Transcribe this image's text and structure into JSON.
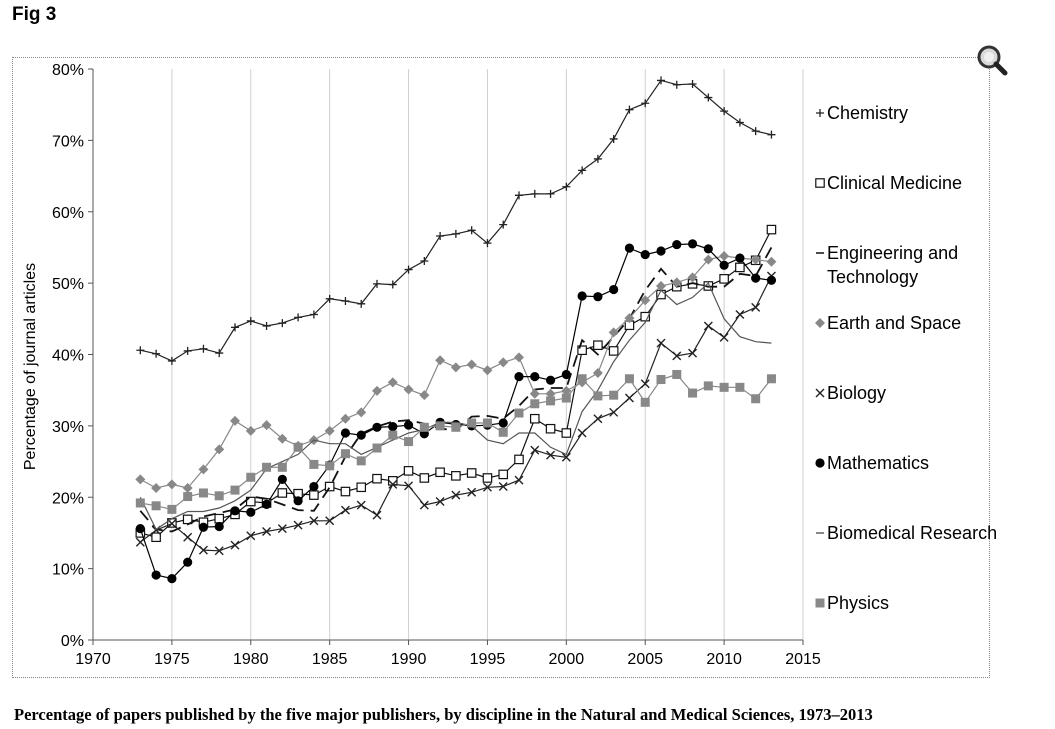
{
  "fig_label": "Fig 3",
  "caption": "Percentage of papers published by the five major publishers, by discipline in the Natural and Medical Sciences, 1973–2013",
  "zoom_icon": "magnifier-icon",
  "chart_data": {
    "type": "line",
    "title": "",
    "xlabel": "",
    "ylabel": "Percentage of journal articles",
    "xlim": [
      1970,
      2015
    ],
    "ylim": [
      0,
      80
    ],
    "x_ticks": [
      1970,
      1975,
      1980,
      1985,
      1990,
      1995,
      2000,
      2005,
      2010,
      2015
    ],
    "x_tick_labels": [
      "1970",
      "1975",
      "1980",
      "1985",
      "1990",
      "1995",
      "2000",
      "2005",
      "2010",
      "2015"
    ],
    "y_ticks": [
      0,
      10,
      20,
      30,
      40,
      50,
      60,
      70,
      80
    ],
    "y_tick_labels": [
      "0%",
      "10%",
      "20%",
      "30%",
      "40%",
      "50%",
      "60%",
      "70%",
      "80%"
    ],
    "grid": "vertical",
    "legend_position": "right",
    "x": [
      1973,
      1974,
      1975,
      1976,
      1977,
      1978,
      1979,
      1980,
      1981,
      1982,
      1983,
      1984,
      1985,
      1986,
      1987,
      1988,
      1989,
      1990,
      1991,
      1992,
      1993,
      1994,
      1995,
      1996,
      1997,
      1998,
      1999,
      2000,
      2001,
      2002,
      2003,
      2004,
      2005,
      2006,
      2007,
      2008,
      2009,
      2010,
      2011,
      2012,
      2013
    ],
    "series": [
      {
        "name": "Chemistry",
        "color": "#222222",
        "marker": "plus",
        "dash": "none",
        "values": [
          40.6,
          40.1,
          39.1,
          40.5,
          40.8,
          40.2,
          43.8,
          44.7,
          44.0,
          44.4,
          45.2,
          45.6,
          47.8,
          47.5,
          47.1,
          49.9,
          49.8,
          51.9,
          53.1,
          56.6,
          56.9,
          57.4,
          55.6,
          58.2,
          62.3,
          62.5,
          62.5,
          63.5,
          65.8,
          67.4,
          70.2,
          74.3,
          75.2,
          78.4,
          77.8,
          77.9,
          76.0,
          74.1,
          72.5,
          71.3,
          70.8
        ]
      },
      {
        "name": "Clinical Medicine",
        "color": "#111111",
        "marker": "square-open",
        "dash": "none",
        "values": [
          15.0,
          14.4,
          16.4,
          16.9,
          16.5,
          17.0,
          17.6,
          19.4,
          19.2,
          20.6,
          20.5,
          20.3,
          21.5,
          20.8,
          21.4,
          22.6,
          22.3,
          23.7,
          22.7,
          23.5,
          23.0,
          23.4,
          22.7,
          23.2,
          25.3,
          31.0,
          29.6,
          29.0,
          40.6,
          41.3,
          40.5,
          44.1,
          45.3,
          48.4,
          49.5,
          49.9,
          49.6,
          50.6,
          52.2,
          53.2,
          57.5
        ]
      },
      {
        "name": "Engineering and Technology",
        "color": "#111111",
        "marker": "none",
        "dash": "12,7",
        "values": [
          18.1,
          15.5,
          15.2,
          16.2,
          17.3,
          17.8,
          18.3,
          20.1,
          19.8,
          19.0,
          18.2,
          18.1,
          21.4,
          25.7,
          28.9,
          29.9,
          30.6,
          30.8,
          30.3,
          29.6,
          29.4,
          31.3,
          31.4,
          31.0,
          32.8,
          35.1,
          35.3,
          35.3,
          42.0,
          40.0,
          42.5,
          45.0,
          49.0,
          52.0,
          49.5,
          50.0,
          49.5,
          49.5,
          51.3,
          51.0,
          55.0
        ]
      },
      {
        "name": "Earth and Space",
        "color": "#888888",
        "marker": "diamond",
        "dash": "none",
        "values": [
          22.5,
          21.3,
          21.8,
          21.3,
          23.9,
          26.7,
          30.7,
          29.3,
          30.1,
          28.2,
          27.2,
          28.0,
          29.3,
          31.0,
          31.9,
          34.9,
          36.1,
          35.1,
          34.3,
          39.2,
          38.2,
          38.6,
          37.8,
          38.9,
          39.6,
          34.5,
          34.5,
          34.9,
          36.1,
          37.4,
          43.1,
          45.1,
          47.6,
          49.6,
          50.1,
          50.8,
          53.3,
          53.8,
          53.5,
          53.3,
          53.0
        ]
      },
      {
        "name": "Biology",
        "color": "#222222",
        "marker": "x",
        "dash": "none",
        "values": [
          13.7,
          15.4,
          16.3,
          14.4,
          12.6,
          12.5,
          13.3,
          14.6,
          15.2,
          15.6,
          16.1,
          16.7,
          16.7,
          18.2,
          18.9,
          17.5,
          21.8,
          21.6,
          18.9,
          19.4,
          20.3,
          20.7,
          21.4,
          21.5,
          22.4,
          26.6,
          25.9,
          25.6,
          29.0,
          31.0,
          31.9,
          33.9,
          35.9,
          41.6,
          39.8,
          40.2,
          44.0,
          42.4,
          45.6,
          46.6,
          51.0
        ]
      },
      {
        "name": "Mathematics",
        "color": "#000000",
        "marker": "circle",
        "dash": "none",
        "values": [
          15.6,
          9.1,
          8.6,
          10.9,
          15.8,
          15.9,
          18.1,
          17.9,
          19.0,
          22.5,
          19.5,
          21.5,
          24.5,
          29.0,
          28.7,
          29.8,
          29.9,
          30.1,
          28.9,
          30.5,
          30.2,
          30.0,
          30.1,
          30.4,
          36.9,
          36.9,
          36.4,
          37.2,
          48.2,
          48.1,
          49.1,
          54.9,
          54.0,
          54.5,
          55.4,
          55.5,
          54.8,
          52.5,
          53.5,
          50.7,
          50.4
        ]
      },
      {
        "name": "Biomedical Research",
        "color": "#555555",
        "marker": "dash",
        "dash": "none",
        "values": [
          20.0,
          15.5,
          17.0,
          18.0,
          18.0,
          18.5,
          19.5,
          21.0,
          24.0,
          25.0,
          26.0,
          28.0,
          27.5,
          27.5,
          26.0,
          27.0,
          28.0,
          29.0,
          29.5,
          30.5,
          30.5,
          30.0,
          28.0,
          27.5,
          29.0,
          29.0,
          27.0,
          26.0,
          32.0,
          35.0,
          39.0,
          42.0,
          44.5,
          49.0,
          47.0,
          48.0,
          50.0,
          45.0,
          42.5,
          41.8,
          41.6
        ]
      },
      {
        "name": "Physics",
        "color": "#888888",
        "marker": "square",
        "dash": "none",
        "values": [
          19.2,
          18.8,
          18.3,
          20.1,
          20.6,
          20.2,
          21.0,
          22.8,
          24.2,
          24.2,
          27.0,
          24.6,
          24.4,
          26.1,
          25.1,
          26.9,
          28.7,
          27.8,
          29.8,
          30.0,
          29.8,
          30.4,
          30.4,
          29.1,
          31.8,
          33.1,
          33.5,
          33.9,
          36.6,
          34.2,
          34.3,
          36.6,
          33.3,
          36.5,
          37.2,
          34.6,
          35.6,
          35.4,
          35.4,
          33.8,
          36.6
        ]
      }
    ]
  }
}
